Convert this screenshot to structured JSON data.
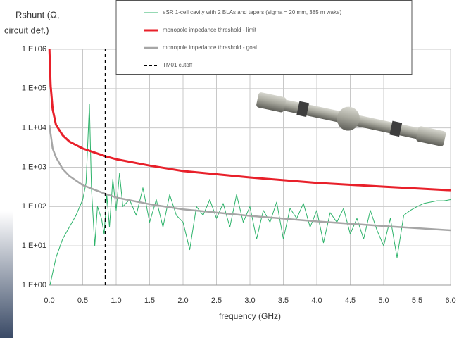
{
  "chart_data": {
    "type": "line",
    "ylabel": [
      "Rshunt (Ω,",
      "circuit def.)"
    ],
    "xlabel": "frequency (GHz)",
    "log_y": true,
    "grid": true,
    "xlim": [
      0,
      6
    ],
    "ylim": [
      1,
      1000000
    ],
    "xticks": [
      {
        "value": 0,
        "label": "0.0"
      },
      0.5,
      {
        "value": 1,
        "label": "1.0"
      },
      1.5,
      {
        "value": 2,
        "label": "2.0"
      },
      2.5,
      {
        "value": 3,
        "label": "3.0"
      },
      3.5,
      {
        "value": 4,
        "label": "4.0"
      },
      4.5,
      {
        "value": 5,
        "label": "5.0"
      },
      5.5,
      {
        "value": 6,
        "label": "6.0"
      }
    ],
    "yticks": [
      {
        "value": 1,
        "label": "1.E+00"
      },
      {
        "value": 10,
        "label": "1.E+01"
      },
      {
        "value": 100,
        "label": "1.E+02"
      },
      {
        "value": 1000,
        "label": "1.E+03"
      },
      {
        "value": 10000,
        "label": "1.E+04"
      },
      {
        "value": 100000,
        "label": "1.E+05"
      },
      {
        "value": 1000000,
        "label": "1.E+06"
      }
    ],
    "series": [
      {
        "name": "eSR 1-cell cavity with 2 BLAs and tapers (sigma = 20 mm, 385 m wake)",
        "color": "#2db36a",
        "width": 1,
        "x": [
          0.01,
          0.1,
          0.2,
          0.3,
          0.4,
          0.5,
          0.55,
          0.6,
          0.63,
          0.68,
          0.72,
          0.78,
          0.82,
          0.86,
          0.9,
          0.95,
          1.0,
          1.05,
          1.1,
          1.2,
          1.3,
          1.4,
          1.5,
          1.6,
          1.7,
          1.8,
          1.9,
          2.0,
          2.1,
          2.2,
          2.3,
          2.4,
          2.5,
          2.6,
          2.7,
          2.8,
          2.9,
          3.0,
          3.1,
          3.2,
          3.3,
          3.4,
          3.5,
          3.6,
          3.7,
          3.8,
          3.9,
          4.0,
          4.1,
          4.2,
          4.3,
          4.4,
          4.5,
          4.6,
          4.7,
          4.8,
          4.9,
          5.0,
          5.1,
          5.2,
          5.3,
          5.4,
          5.5,
          5.6,
          5.7,
          5.8,
          5.9,
          6.0
        ],
        "values": [
          1,
          5,
          15,
          30,
          60,
          150,
          400,
          40000,
          300,
          10,
          100,
          50,
          20,
          200,
          30,
          500,
          80,
          700,
          100,
          150,
          60,
          300,
          40,
          150,
          30,
          200,
          60,
          40,
          8,
          100,
          60,
          150,
          50,
          120,
          30,
          200,
          40,
          100,
          15,
          80,
          40,
          130,
          15,
          90,
          50,
          120,
          30,
          80,
          12,
          70,
          40,
          90,
          20,
          50,
          15,
          80,
          25,
          10,
          50,
          5,
          60,
          80,
          100,
          120,
          130,
          140,
          140,
          150
        ]
      },
      {
        "name": "monopole impedance threshold - limit",
        "color": "#e8202a",
        "width": 3,
        "x": [
          0.002,
          0.02,
          0.05,
          0.1,
          0.2,
          0.3,
          0.5,
          0.84,
          1,
          1.5,
          2,
          3,
          4,
          5,
          6
        ],
        "values": [
          1000000,
          120000,
          30000,
          12000,
          6500,
          4500,
          3000,
          1900,
          1600,
          1100,
          800,
          550,
          400,
          320,
          260
        ]
      },
      {
        "name": "monopole impedance threshold - goal",
        "color": "#a6a6a6",
        "width": 2.5,
        "x": [
          0.002,
          0.05,
          0.1,
          0.2,
          0.3,
          0.5,
          0.84,
          1,
          1.5,
          2,
          3,
          4,
          5,
          6
        ],
        "values": [
          12000,
          3000,
          1800,
          900,
          600,
          350,
          210,
          170,
          115,
          85,
          58,
          42,
          32,
          25
        ]
      },
      {
        "name": "TM01 cutoff",
        "color": "#000000",
        "width": 2,
        "dash": true,
        "x": [
          0.84,
          0.84
        ],
        "values": [
          1,
          1000000
        ]
      }
    ]
  }
}
